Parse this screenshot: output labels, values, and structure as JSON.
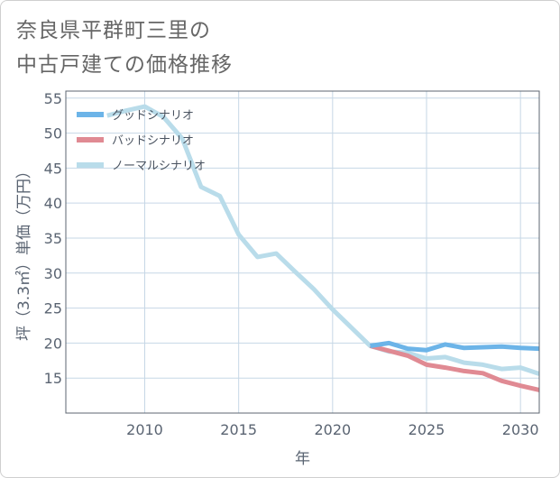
{
  "title": {
    "line1": "奈良県平群町三里の",
    "line2": "中古戸建ての価格推移"
  },
  "chart_data": {
    "type": "line",
    "xlabel": "年",
    "ylabel": "坪（3.3㎡）単価（万円）",
    "xlim": [
      2005.8,
      2031.0
    ],
    "ylim": [
      10.0,
      56.0
    ],
    "xticks": [
      2010,
      2015,
      2020,
      2025,
      2030
    ],
    "yticks": [
      15,
      20,
      25,
      30,
      35,
      40,
      45,
      50,
      55
    ],
    "grid": true,
    "legend_position": "top-left",
    "series": [
      {
        "name": "グッドシナリオ",
        "color": "#6cb4e8",
        "x": [
          2022,
          2023,
          2024,
          2025,
          2026,
          2027,
          2028,
          2029,
          2030,
          2031
        ],
        "y": [
          19.6,
          20.0,
          19.2,
          19.0,
          19.8,
          19.3,
          19.4,
          19.5,
          19.3,
          19.2
        ]
      },
      {
        "name": "バッドシナリオ",
        "color": "#e08a93",
        "x": [
          2022,
          2023,
          2024,
          2025,
          2026,
          2027,
          2028,
          2029,
          2030,
          2031
        ],
        "y": [
          19.6,
          18.9,
          18.2,
          16.9,
          16.5,
          16.0,
          15.7,
          14.6,
          13.9,
          13.3
        ]
      },
      {
        "name": "ノーマルシナリオ",
        "color": "#b9dcea",
        "x": [
          2008,
          2009,
          2010,
          2011,
          2012,
          2013,
          2014,
          2015,
          2016,
          2017,
          2018,
          2019,
          2020,
          2021,
          2022,
          2023,
          2024,
          2025,
          2026,
          2027,
          2028,
          2029,
          2030,
          2031
        ],
        "y": [
          52.5,
          53.2,
          53.8,
          52.3,
          49.2,
          42.3,
          41.0,
          35.5,
          32.3,
          32.8,
          30.2,
          27.7,
          24.8,
          22.2,
          19.6,
          18.8,
          18.6,
          17.8,
          18.0,
          17.2,
          16.9,
          16.3,
          16.5,
          15.6
        ]
      }
    ]
  }
}
